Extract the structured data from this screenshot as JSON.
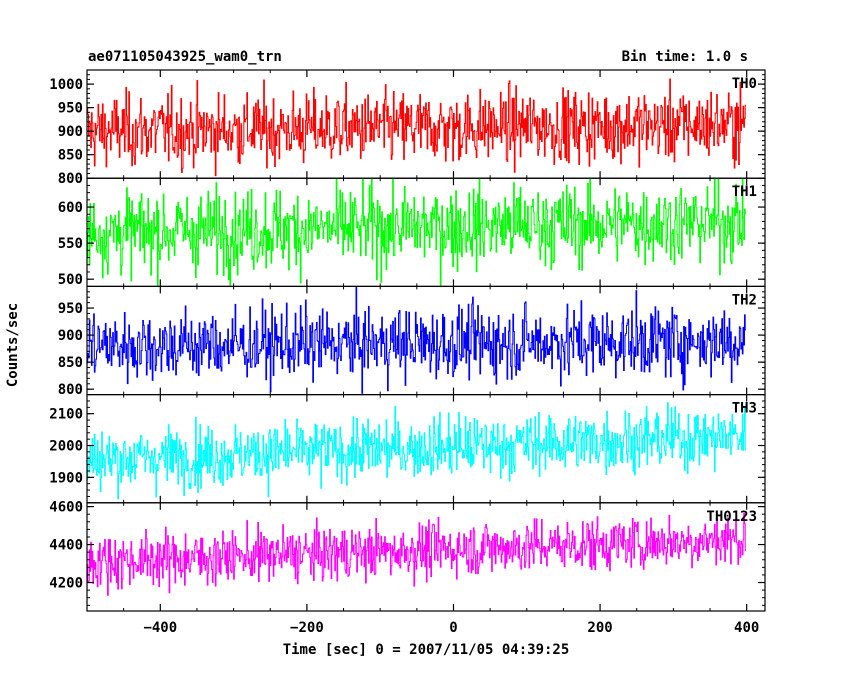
{
  "header": {
    "title": "ae071105043925_wam0_trn",
    "bin_time": "Bin time: 1.0 s"
  },
  "chart_data": {
    "type": "line",
    "style": "stacked panels, histogram-step light curves",
    "xlabel": "Time [sec] 0 = 2007/11/05 04:39:25",
    "ylabel": "Counts/sec",
    "xlim": [
      -500,
      425
    ],
    "x_ticks": [
      -400,
      -200,
      0,
      200,
      400
    ],
    "x_tick_labels": [
      "−400",
      "−200",
      "0",
      "200",
      "400"
    ],
    "x_range_of_data": [
      -500,
      398
    ],
    "bin_seconds": 1.0,
    "series": [
      {
        "name": "TH0",
        "color": "#ff0000",
        "ylim": [
          800,
          1030
        ],
        "yticks": [
          800,
          850,
          900,
          950,
          1000
        ],
        "mean_start": 900,
        "mean_end": 915,
        "noise_sd": 38
      },
      {
        "name": "TH1",
        "color": "#00ff00",
        "ylim": [
          490,
          640
        ],
        "yticks": [
          500,
          550,
          600
        ],
        "mean_start": 565,
        "mean_end": 580,
        "noise_sd": 28
      },
      {
        "name": "TH2",
        "color": "#0000ff",
        "ylim": [
          790,
          990
        ],
        "yticks": [
          800,
          850,
          900,
          950
        ],
        "mean_start": 880,
        "mean_end": 890,
        "noise_sd": 33
      },
      {
        "name": "TH3",
        "color": "#00ffff",
        "ylim": [
          1820,
          2160
        ],
        "yticks": [
          1900,
          2000,
          2100
        ],
        "mean_start": 1955,
        "mean_end": 2030,
        "noise_sd": 48
      },
      {
        "name": "TH0123",
        "color": "#ff00ff",
        "ylim": [
          4050,
          4620
        ],
        "yticks": [
          4200,
          4400,
          4600
        ],
        "mean_start": 4310,
        "mean_end": 4430,
        "noise_sd": 70
      }
    ]
  }
}
